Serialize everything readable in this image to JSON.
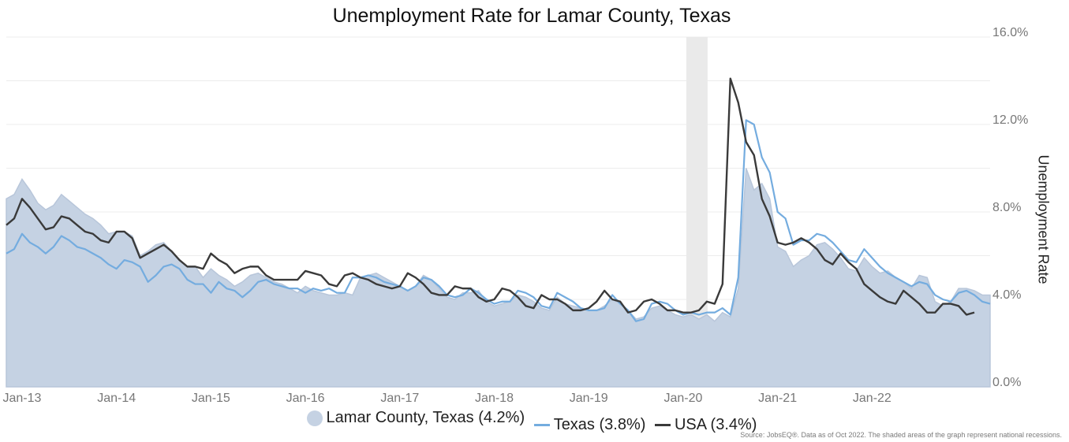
{
  "chart_data": {
    "type": "area",
    "title": "Unemployment Rate for Lamar County, Texas",
    "ylabel": "Unemployment Rate",
    "ylim": [
      0,
      16
    ],
    "y_ticks": [
      "16.0%",
      "12.0%",
      "8.0%",
      "4.0%",
      "0.0%"
    ],
    "y_tick_values": [
      16,
      12,
      8,
      4,
      0
    ],
    "x_ticks": [
      "Jan-13",
      "Jan-14",
      "Jan-15",
      "Jan-16",
      "Jan-17",
      "Jan-18",
      "Jan-19",
      "Jan-20",
      "Jan-21",
      "Jan-22"
    ],
    "x_start": "2012-11",
    "recession": {
      "start": "2020-02",
      "end": "2020-04"
    },
    "grid": true,
    "legend_position": "bottom",
    "series": [
      {
        "name": "Lamar County, Texas (4.2%)",
        "style": "area",
        "color": "#c5d2e3",
        "values": [
          8.6,
          8.8,
          9.5,
          9.0,
          8.4,
          8.1,
          8.3,
          8.8,
          8.5,
          8.2,
          7.9,
          7.7,
          7.4,
          7.0,
          7.1,
          7.1,
          6.9,
          6.0,
          6.2,
          6.5,
          6.6,
          6.2,
          5.8,
          5.5,
          5.5,
          5.0,
          5.4,
          5.1,
          4.9,
          4.6,
          4.8,
          5.1,
          5.2,
          5.0,
          4.8,
          4.7,
          4.5,
          4.3,
          4.6,
          4.4,
          4.3,
          4.2,
          4.2,
          4.3,
          4.2,
          5.0,
          5.1,
          5.2,
          5.0,
          4.8,
          4.6,
          4.4,
          4.6,
          5.1,
          4.9,
          4.5,
          4.1,
          4.0,
          4.3,
          4.3,
          4.4,
          3.9,
          3.7,
          3.8,
          3.9,
          4.2,
          4.1,
          3.9,
          3.6,
          3.5,
          4.1,
          3.8,
          3.7,
          3.6,
          3.5,
          3.5,
          3.7,
          4.0,
          3.8,
          3.5,
          3.1,
          3.2,
          3.6,
          3.7,
          3.5,
          3.3,
          3.2,
          3.3,
          3.1,
          3.3,
          3.0,
          3.4,
          3.2,
          4.5,
          10.0,
          9.0,
          9.3,
          8.6,
          6.4,
          6.2,
          5.5,
          5.8,
          6.0,
          6.5,
          6.6,
          6.3,
          5.9,
          5.4,
          5.3,
          5.9,
          5.5,
          5.2,
          5.3,
          5.0,
          4.8,
          4.5,
          5.1,
          5.0,
          3.9,
          3.7,
          3.9,
          4.5,
          4.5,
          4.4,
          4.2,
          4.2
        ]
      },
      {
        "name": "Texas (3.8%)",
        "style": "line",
        "color": "#74acdf",
        "values": [
          6.1,
          6.3,
          7.0,
          6.6,
          6.4,
          6.1,
          6.4,
          6.9,
          6.7,
          6.4,
          6.3,
          6.1,
          5.9,
          5.6,
          5.4,
          5.8,
          5.7,
          5.5,
          4.8,
          5.1,
          5.5,
          5.6,
          5.4,
          4.9,
          4.7,
          4.7,
          4.3,
          4.8,
          4.5,
          4.4,
          4.1,
          4.4,
          4.8,
          4.9,
          4.7,
          4.6,
          4.5,
          4.5,
          4.3,
          4.5,
          4.4,
          4.5,
          4.3,
          4.3,
          5.0,
          5.0,
          5.1,
          5.0,
          4.8,
          4.7,
          4.6,
          4.4,
          4.6,
          5.0,
          4.9,
          4.6,
          4.2,
          4.1,
          4.2,
          4.5,
          4.3,
          4.0,
          3.8,
          3.9,
          3.9,
          4.4,
          4.3,
          4.1,
          3.7,
          3.6,
          4.3,
          4.1,
          3.9,
          3.6,
          3.5,
          3.5,
          3.6,
          4.2,
          3.8,
          3.5,
          3.0,
          3.1,
          3.8,
          3.9,
          3.8,
          3.5,
          3.3,
          3.4,
          3.3,
          3.4,
          3.4,
          3.6,
          3.3,
          5.0,
          12.2,
          12.0,
          10.5,
          9.8,
          8.0,
          7.7,
          6.5,
          6.7,
          6.7,
          7.0,
          6.9,
          6.6,
          6.2,
          5.8,
          5.7,
          6.3,
          5.9,
          5.5,
          5.2,
          5.0,
          4.8,
          4.6,
          4.8,
          4.7,
          4.2,
          4.0,
          3.9,
          4.3,
          4.4,
          4.2,
          3.9,
          3.8
        ]
      },
      {
        "name": "USA (3.4%)",
        "style": "line",
        "color": "#3a3a3a",
        "values": [
          7.4,
          7.7,
          8.6,
          8.2,
          7.7,
          7.2,
          7.3,
          7.8,
          7.7,
          7.4,
          7.1,
          7.0,
          6.7,
          6.6,
          7.1,
          7.1,
          6.8,
          5.9,
          6.1,
          6.3,
          6.5,
          6.2,
          5.8,
          5.5,
          5.5,
          5.4,
          6.1,
          5.8,
          5.6,
          5.2,
          5.4,
          5.5,
          5.5,
          5.1,
          4.9,
          4.9,
          4.9,
          4.9,
          5.3,
          5.2,
          5.1,
          4.7,
          4.6,
          5.1,
          5.2,
          5.0,
          4.9,
          4.7,
          4.6,
          4.5,
          4.6,
          5.2,
          5.0,
          4.7,
          4.3,
          4.2,
          4.2,
          4.6,
          4.5,
          4.5,
          4.1,
          3.9,
          4.0,
          4.5,
          4.4,
          4.1,
          3.7,
          3.6,
          4.2,
          4.0,
          4.0,
          3.8,
          3.5,
          3.5,
          3.6,
          3.9,
          4.4,
          4.0,
          3.9,
          3.4,
          3.5,
          3.9,
          4.0,
          3.8,
          3.5,
          3.5,
          3.4,
          3.4,
          3.5,
          3.9,
          3.8,
          4.7,
          14.1,
          13.0,
          11.2,
          10.6,
          8.6,
          7.8,
          6.6,
          6.5,
          6.6,
          6.8,
          6.6,
          6.3,
          5.8,
          5.6,
          6.1,
          5.7,
          5.4,
          4.7,
          4.4,
          4.1,
          3.9,
          3.8,
          4.4,
          4.1,
          3.8,
          3.4,
          3.4,
          3.8,
          3.8,
          3.7,
          3.3,
          3.4
        ]
      }
    ]
  },
  "source": "Source: JobsEQ®. Data as of Oct 2022. The shaded areas of the graph represent national recessions."
}
